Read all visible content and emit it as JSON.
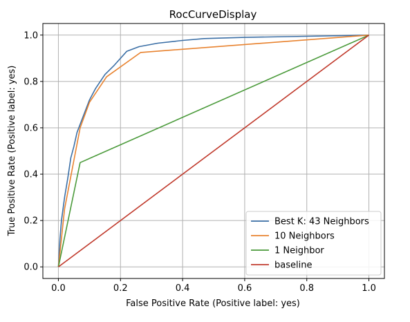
{
  "chart_data": {
    "type": "line",
    "title": "RocCurveDisplay",
    "xlabel": "False Positive Rate (Positive label: yes)",
    "ylabel": "True Positive Rate (Positive label: yes)",
    "xlim": [
      -0.05,
      1.05
    ],
    "ylim": [
      -0.05,
      1.05
    ],
    "xticks": [
      "0.0",
      "0.2",
      "0.4",
      "0.6",
      "0.8",
      "1.0"
    ],
    "yticks": [
      "0.0",
      "0.2",
      "0.4",
      "0.6",
      "0.8",
      "1.0"
    ],
    "grid": true,
    "legend_position": "lower-right",
    "series": [
      {
        "name": "Best K: 43 Neighbors",
        "color": "#3a6ea5",
        "x": [
          0.0,
          0.005,
          0.01,
          0.02,
          0.03,
          0.04,
          0.05,
          0.06,
          0.08,
          0.1,
          0.12,
          0.15,
          0.18,
          0.22,
          0.26,
          0.32,
          0.4,
          0.47,
          0.6,
          0.8,
          1.0
        ],
        "y": [
          0.0,
          0.12,
          0.2,
          0.3,
          0.38,
          0.47,
          0.52,
          0.58,
          0.65,
          0.72,
          0.77,
          0.83,
          0.87,
          0.93,
          0.95,
          0.965,
          0.977,
          0.985,
          0.99,
          0.995,
          1.0
        ]
      },
      {
        "name": "10 Neighbors",
        "color": "#e8822e",
        "x": [
          0.0,
          0.02,
          0.05,
          0.07,
          0.1,
          0.155,
          0.265,
          1.0
        ],
        "y": [
          0.0,
          0.25,
          0.46,
          0.6,
          0.71,
          0.82,
          0.925,
          1.0
        ]
      },
      {
        "name": "1 Neighbor",
        "color": "#4a9a3a",
        "x": [
          0.0,
          0.07,
          1.0
        ],
        "y": [
          0.0,
          0.45,
          1.0
        ]
      },
      {
        "name": "baseline",
        "color": "#c0392b",
        "x": [
          0.0,
          1.0
        ],
        "y": [
          0.0,
          1.0
        ]
      }
    ]
  }
}
